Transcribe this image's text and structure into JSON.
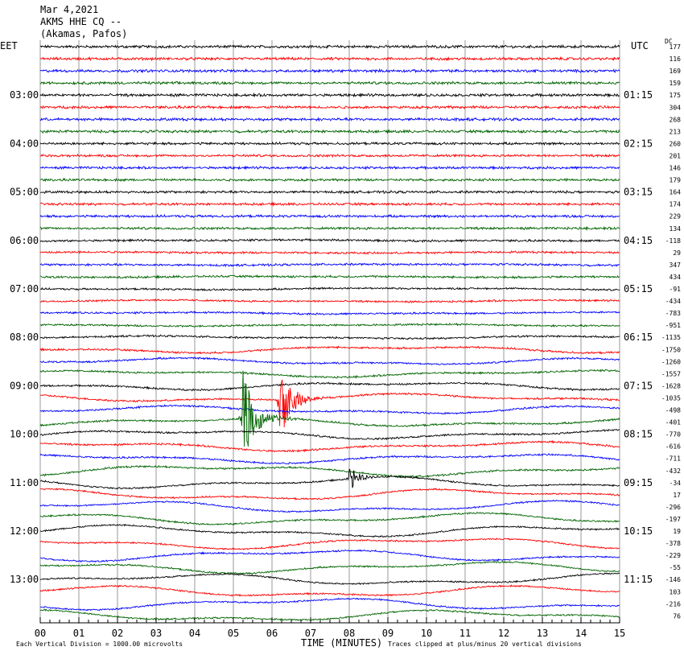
{
  "header": {
    "date": "Mar 4,2021",
    "station": "AKMS HHE CQ --",
    "location": "(Akamas, Pafos)"
  },
  "left_timezone": "EET",
  "right_timezone": "UTC",
  "dc_label": "DC",
  "footer": {
    "scale_note": "Each Vertical Division = 1000.00 microvolts",
    "xlabel": "TIME (MINUTES)",
    "clip_note": "Traces clipped at plus/minus 20 vertical divisions"
  },
  "colors": {
    "black": "#000000",
    "red": "#ff0000",
    "blue": "#0000ff",
    "green": "#006400",
    "grid": "#808080"
  },
  "chart_data": {
    "type": "line",
    "subtype": "helicorder-seismogram",
    "traces_per_hour": 4,
    "trace_minutes": 15,
    "color_cycle": [
      "black",
      "red",
      "blue",
      "green"
    ],
    "x_ticks": [
      "00",
      "01",
      "02",
      "03",
      "04",
      "05",
      "06",
      "07",
      "08",
      "09",
      "10",
      "11",
      "12",
      "13",
      "14",
      "15"
    ],
    "xlim": [
      0,
      15
    ],
    "left_hour_labels": [
      "03:00",
      "04:00",
      "05:00",
      "06:00",
      "07:00",
      "08:00",
      "09:00",
      "10:00",
      "11:00",
      "12:00",
      "13:00"
    ],
    "right_hour_labels": [
      "01:15",
      "02:15",
      "03:15",
      "04:15",
      "05:15",
      "06:15",
      "07:15",
      "08:15",
      "09:15",
      "10:15",
      "11:15"
    ],
    "hour_label_first_trace": 4,
    "dc_offsets": [
      "177",
      "116",
      "169",
      "159",
      "175",
      "304",
      "268",
      "213",
      "260",
      "201",
      "146",
      "179",
      "164",
      "174",
      "229",
      "134",
      "-118",
      "29",
      "347",
      "434",
      "-91",
      "-434",
      "-783",
      "-951",
      "-1135",
      "-1750",
      "-1260",
      "-1557",
      "-1628",
      "-1035",
      "-498",
      "-401",
      "-770",
      "-616",
      "-711",
      "-432",
      "-34",
      "17",
      "-296",
      "-197",
      "19",
      "-378",
      "-229",
      "-55",
      "-146",
      "103",
      "-216",
      "76"
    ],
    "noise_level": [
      1.0,
      1.0,
      1.0,
      1.0,
      1.0,
      1.0,
      1.0,
      1.0,
      0.9,
      0.9,
      0.9,
      0.9,
      0.9,
      0.9,
      0.9,
      0.9,
      0.8,
      0.8,
      0.8,
      0.8,
      0.7,
      0.7,
      0.7,
      0.7,
      0.7,
      0.7,
      0.7,
      0.7,
      0.7,
      0.7,
      0.7,
      0.7,
      0.7,
      0.7,
      0.7,
      0.7,
      0.6,
      0.6,
      0.6,
      0.6,
      0.6,
      0.6,
      0.6,
      0.6,
      0.6,
      0.6,
      0.6,
      0.6
    ],
    "long_period_amplitude": [
      0,
      0,
      0,
      0,
      0,
      0,
      0,
      0,
      0,
      0,
      0,
      0,
      0,
      0,
      0,
      0,
      0.5,
      0.5,
      0.5,
      0.5,
      0.8,
      0.8,
      0.8,
      0.8,
      1.2,
      3,
      3,
      3,
      3.5,
      3.5,
      3.5,
      4,
      4,
      4,
      4,
      5,
      5,
      5,
      5,
      5,
      5,
      5,
      5,
      5,
      5,
      5,
      5,
      5
    ],
    "events": [
      {
        "trace": 29,
        "minute": 6.2,
        "amplitude": 50,
        "duration_min": 1.4,
        "color": "red"
      },
      {
        "trace": 31,
        "minute": 5.25,
        "amplitude": 60,
        "duration_min": 1.5,
        "color": "green"
      },
      {
        "trace": 36,
        "minute": 8.0,
        "amplitude": 14,
        "duration_min": 0.6,
        "color": "black"
      }
    ]
  }
}
